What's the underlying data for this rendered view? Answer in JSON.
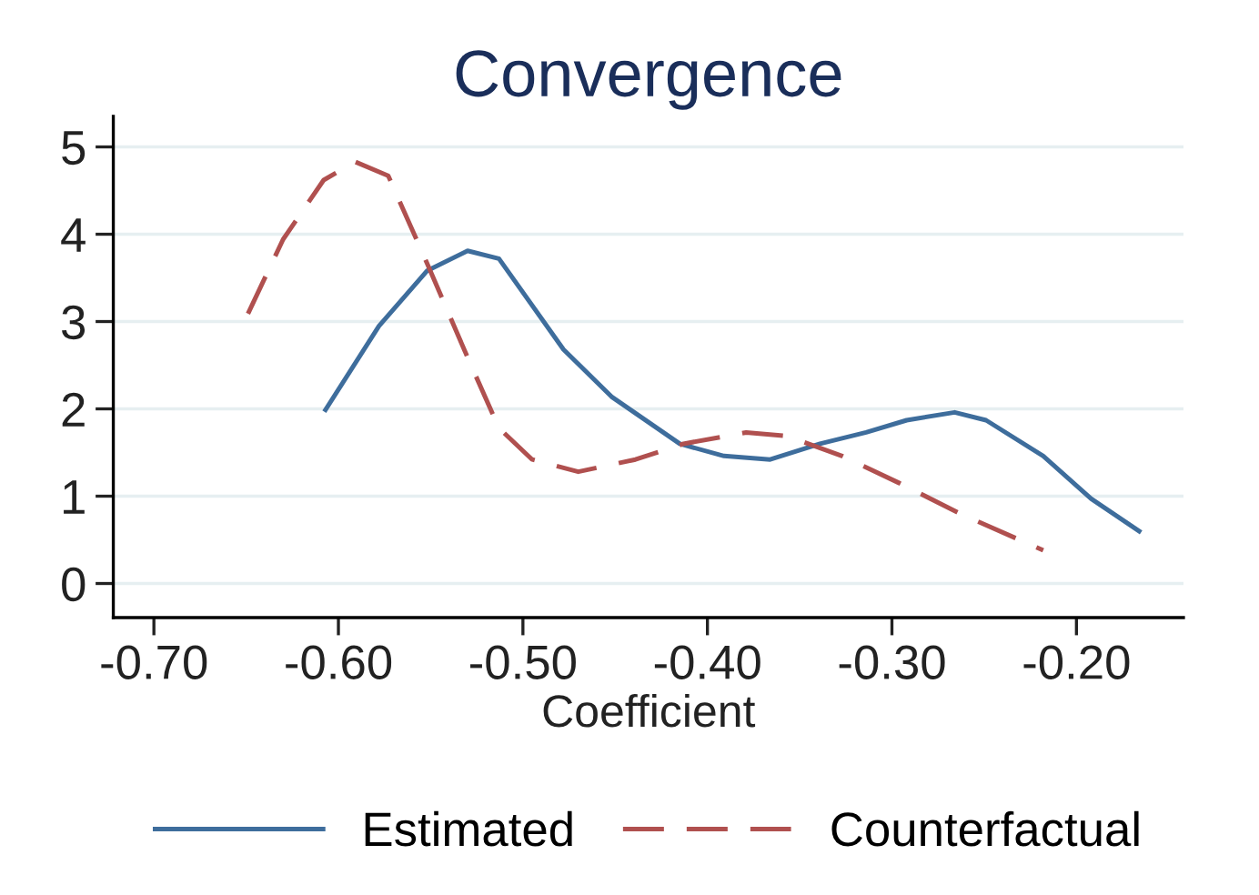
{
  "chart_data": {
    "type": "line",
    "title": "Convergence",
    "xlabel": "Coefficient",
    "xlim": [
      -0.722,
      -0.142
    ],
    "xticks": [
      {
        "value": -0.7,
        "label": "-0.70"
      },
      {
        "value": -0.6,
        "label": "-0.60"
      },
      {
        "value": -0.5,
        "label": "-0.50"
      },
      {
        "value": -0.4,
        "label": "-0.40"
      },
      {
        "value": -0.3,
        "label": "-0.30"
      },
      {
        "value": -0.2,
        "label": "-0.20"
      }
    ],
    "ylim": [
      -0.39,
      5.35
    ],
    "yticks": [
      0,
      1,
      2,
      3,
      4,
      5
    ],
    "grid": "y",
    "legend": "bottom",
    "marker": "none",
    "series": [
      {
        "name": "Estimated",
        "color": "#3e6d9c",
        "line_style": "solid",
        "x": [
          -0.607,
          -0.578,
          -0.552,
          -0.53,
          -0.513,
          -0.478,
          -0.452,
          -0.415,
          -0.391,
          -0.366,
          -0.339,
          -0.314,
          -0.292,
          -0.266,
          -0.249,
          -0.218,
          -0.192,
          -0.166
        ],
        "values": [
          1.99,
          2.95,
          3.58,
          3.81,
          3.72,
          2.68,
          2.14,
          1.6,
          1.46,
          1.42,
          1.6,
          1.73,
          1.87,
          1.96,
          1.87,
          1.46,
          0.97,
          0.6
        ]
      },
      {
        "name": "Counterfactual",
        "color": "#b0504f",
        "line_style": "dashed",
        "x": [
          -0.649,
          -0.63,
          -0.608,
          -0.591,
          -0.573,
          -0.552,
          -0.53,
          -0.513,
          -0.495,
          -0.47,
          -0.439,
          -0.413,
          -0.379,
          -0.357,
          -0.327,
          -0.296,
          -0.262,
          -0.218
        ],
        "values": [
          3.09,
          3.94,
          4.62,
          4.83,
          4.67,
          3.67,
          2.59,
          1.78,
          1.42,
          1.28,
          1.42,
          1.6,
          1.73,
          1.69,
          1.46,
          1.15,
          0.79,
          0.38
        ]
      }
    ]
  }
}
